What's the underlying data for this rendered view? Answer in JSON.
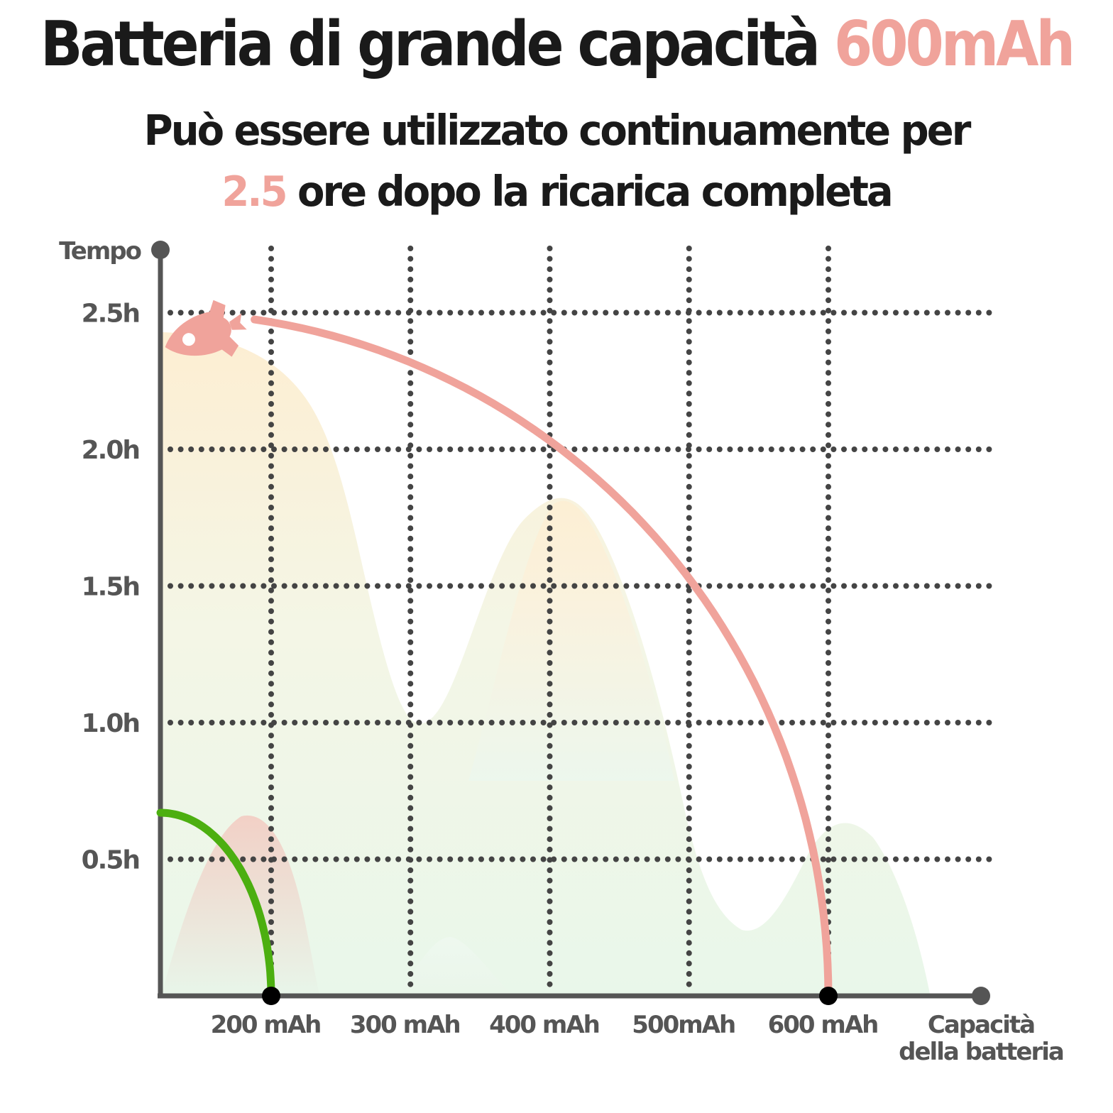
{
  "header": {
    "title_main": "Batteria di grande capacità",
    "title_accent": "600mAh",
    "subtitle_line1": "Può essere utilizzato continuamente per",
    "subtitle_accent": "2.5",
    "subtitle_line2": "ore dopo la ricarica completa"
  },
  "colors": {
    "accent": "#f0a39b",
    "green": "#4caf10",
    "axis": "#555555",
    "grid": "#444444"
  },
  "chart_data": {
    "type": "line",
    "ylabel": "Tempo",
    "xlabel_line1": "Capacità",
    "xlabel_line2": "della batteria",
    "x_categories": [
      "200 mAh",
      "300 mAh",
      "400 mAh",
      "500mAh",
      "600 mAh"
    ],
    "y_ticks": [
      {
        "label": "0.5h",
        "value": 0.5
      },
      {
        "label": "1.0h",
        "value": 1.0
      },
      {
        "label": "1.5h",
        "value": 1.5
      },
      {
        "label": "2.0h",
        "value": 2.0
      },
      {
        "label": "2.5h",
        "value": 2.5
      }
    ],
    "series": [
      {
        "color": "#f0a39b",
        "capacity_index": 4,
        "hours": 2.5
      },
      {
        "color": "#4caf10",
        "capacity_index": 0,
        "hours": 0.67
      }
    ],
    "grid": true
  }
}
